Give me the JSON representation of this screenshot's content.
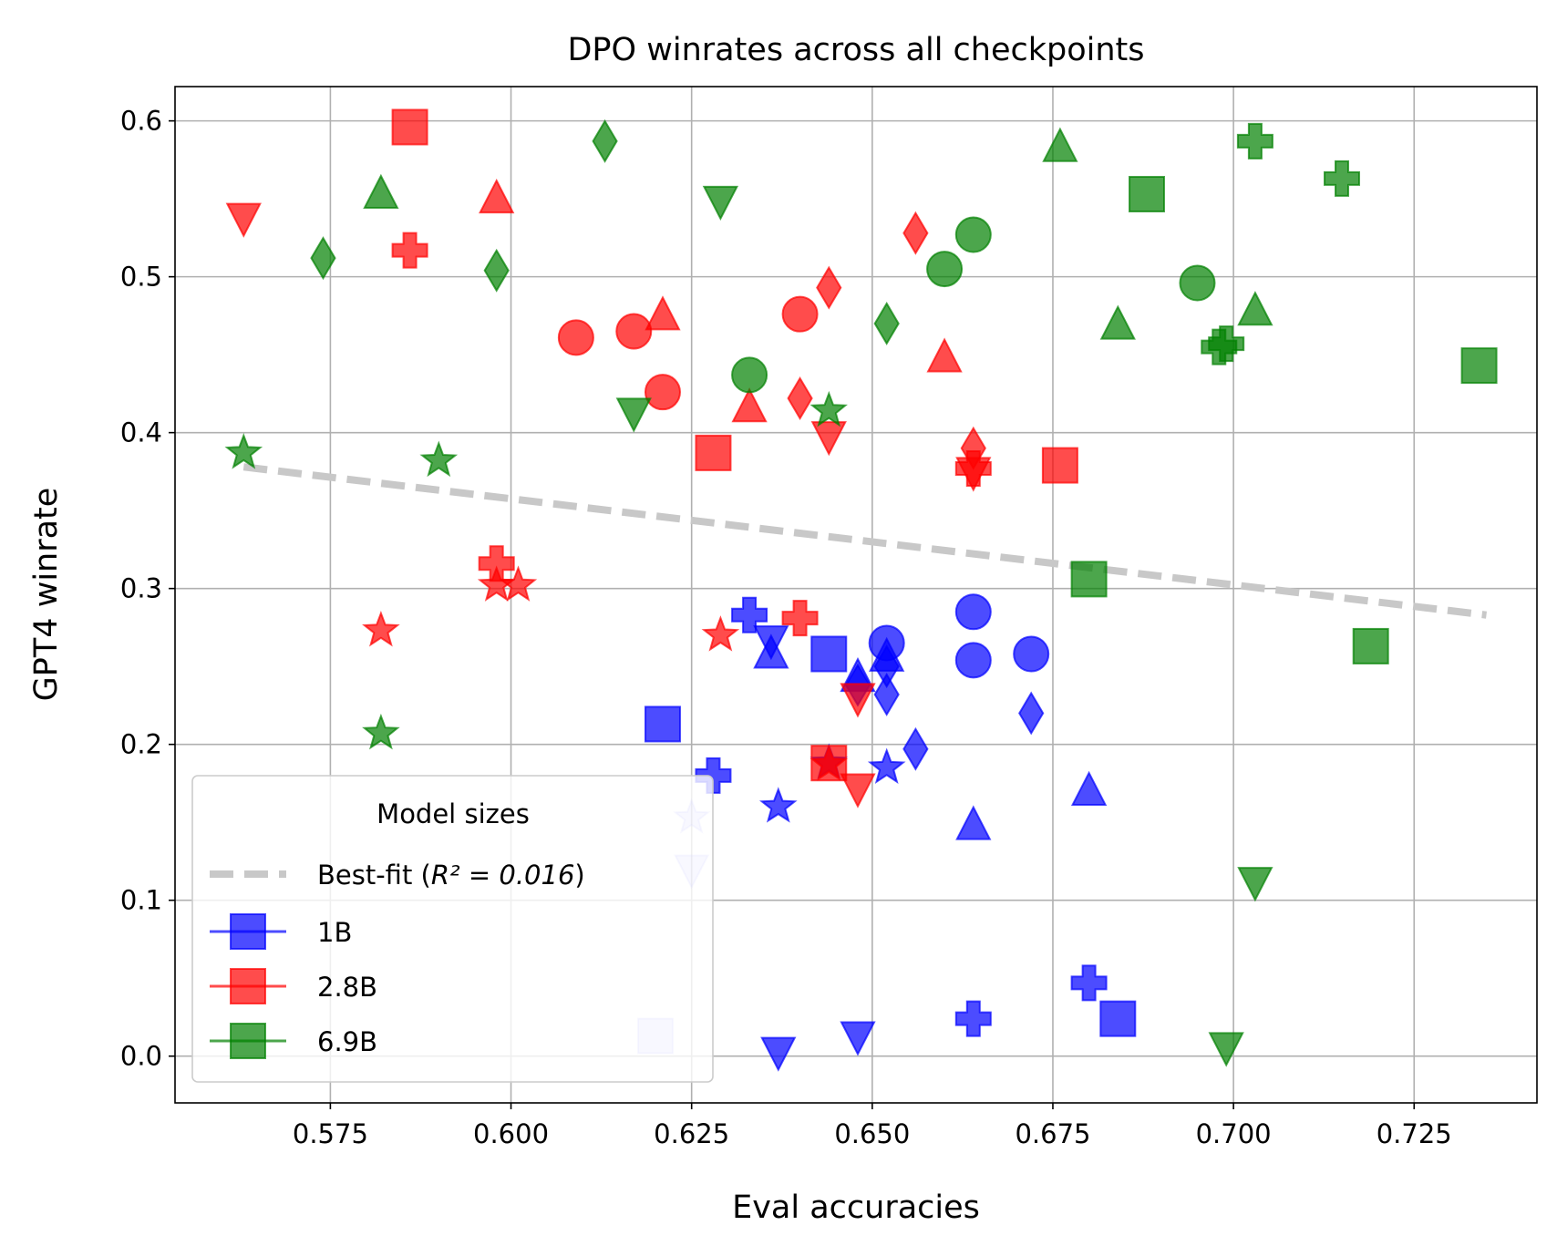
{
  "chart_data": {
    "type": "scatter",
    "title": "DPO winrates across all checkpoints",
    "xlabel": "Eval accuracies",
    "ylabel": "GPT4 winrate",
    "xlim": [
      0.5535,
      0.742
    ],
    "ylim": [
      -0.03,
      0.622
    ],
    "grid": true,
    "xticks": [
      0.575,
      0.6,
      0.625,
      0.65,
      0.675,
      0.7,
      0.725
    ],
    "xtick_labels": [
      "0.575",
      "0.600",
      "0.625",
      "0.650",
      "0.675",
      "0.700",
      "0.725"
    ],
    "yticks": [
      0.0,
      0.1,
      0.2,
      0.3,
      0.4,
      0.5,
      0.6
    ],
    "ytick_labels": [
      "0.0",
      "0.1",
      "0.2",
      "0.3",
      "0.4",
      "0.5",
      "0.6"
    ],
    "best_fit": {
      "x": [
        0.563,
        0.735
      ],
      "y": [
        0.378,
        0.283
      ],
      "label": "Best-fit",
      "r2_label": "R² = 0.016"
    },
    "legend": {
      "title": "Model sizes",
      "location": "lower-left"
    },
    "colors": {
      "1B": "#0000ff",
      "2.8B": "#ff0000",
      "6.9B": "#008000",
      "fit": "#c8c8c8"
    },
    "marker_shapes": [
      "square",
      "circle",
      "triangle-up",
      "triangle-down",
      "diamond",
      "plus",
      "star"
    ],
    "series": [
      {
        "name": "1B",
        "points": [
          {
            "x": 0.644,
            "y": 0.258,
            "marker": "square"
          },
          {
            "x": 0.621,
            "y": 0.213,
            "marker": "square"
          },
          {
            "x": 0.684,
            "y": 0.024,
            "marker": "square"
          },
          {
            "x": 0.62,
            "y": 0.013,
            "marker": "square",
            "alpha": 0.15
          },
          {
            "x": 0.652,
            "y": 0.265,
            "marker": "circle"
          },
          {
            "x": 0.664,
            "y": 0.285,
            "marker": "circle"
          },
          {
            "x": 0.664,
            "y": 0.254,
            "marker": "circle"
          },
          {
            "x": 0.672,
            "y": 0.258,
            "marker": "circle"
          },
          {
            "x": 0.636,
            "y": 0.258,
            "marker": "triangle-up"
          },
          {
            "x": 0.652,
            "y": 0.256,
            "marker": "triangle-up"
          },
          {
            "x": 0.68,
            "y": 0.17,
            "marker": "triangle-up"
          },
          {
            "x": 0.664,
            "y": 0.148,
            "marker": "triangle-up"
          },
          {
            "x": 0.648,
            "y": 0.243,
            "marker": "triangle-up"
          },
          {
            "x": 0.636,
            "y": 0.267,
            "marker": "triangle-down"
          },
          {
            "x": 0.637,
            "y": 0.003,
            "marker": "triangle-down"
          },
          {
            "x": 0.648,
            "y": 0.013,
            "marker": "triangle-down"
          },
          {
            "x": 0.625,
            "y": 0.12,
            "marker": "triangle-down",
            "alpha": 0.15
          },
          {
            "x": 0.652,
            "y": 0.25,
            "marker": "diamond"
          },
          {
            "x": 0.652,
            "y": 0.232,
            "marker": "diamond"
          },
          {
            "x": 0.648,
            "y": 0.238,
            "marker": "diamond"
          },
          {
            "x": 0.656,
            "y": 0.197,
            "marker": "diamond"
          },
          {
            "x": 0.672,
            "y": 0.22,
            "marker": "diamond"
          },
          {
            "x": 0.633,
            "y": 0.283,
            "marker": "plus"
          },
          {
            "x": 0.628,
            "y": 0.18,
            "marker": "plus"
          },
          {
            "x": 0.664,
            "y": 0.024,
            "marker": "plus"
          },
          {
            "x": 0.68,
            "y": 0.047,
            "marker": "plus"
          },
          {
            "x": 0.637,
            "y": 0.16,
            "marker": "star"
          },
          {
            "x": 0.652,
            "y": 0.185,
            "marker": "star"
          },
          {
            "x": 0.644,
            "y": 0.188,
            "marker": "star"
          },
          {
            "x": 0.625,
            "y": 0.153,
            "marker": "star",
            "alpha": 0.15
          }
        ]
      },
      {
        "name": "2.8B",
        "points": [
          {
            "x": 0.586,
            "y": 0.596,
            "marker": "square"
          },
          {
            "x": 0.628,
            "y": 0.387,
            "marker": "square"
          },
          {
            "x": 0.676,
            "y": 0.379,
            "marker": "square"
          },
          {
            "x": 0.644,
            "y": 0.188,
            "marker": "square"
          },
          {
            "x": 0.609,
            "y": 0.461,
            "marker": "circle"
          },
          {
            "x": 0.617,
            "y": 0.465,
            "marker": "circle"
          },
          {
            "x": 0.621,
            "y": 0.426,
            "marker": "circle"
          },
          {
            "x": 0.64,
            "y": 0.476,
            "marker": "circle"
          },
          {
            "x": 0.598,
            "y": 0.55,
            "marker": "triangle-up"
          },
          {
            "x": 0.621,
            "y": 0.475,
            "marker": "triangle-up"
          },
          {
            "x": 0.633,
            "y": 0.416,
            "marker": "triangle-up"
          },
          {
            "x": 0.66,
            "y": 0.448,
            "marker": "triangle-up"
          },
          {
            "x": 0.563,
            "y": 0.538,
            "marker": "triangle-down"
          },
          {
            "x": 0.644,
            "y": 0.398,
            "marker": "triangle-down"
          },
          {
            "x": 0.664,
            "y": 0.375,
            "marker": "triangle-down"
          },
          {
            "x": 0.648,
            "y": 0.23,
            "marker": "triangle-down"
          },
          {
            "x": 0.648,
            "y": 0.172,
            "marker": "triangle-down"
          },
          {
            "x": 0.656,
            "y": 0.528,
            "marker": "diamond"
          },
          {
            "x": 0.644,
            "y": 0.493,
            "marker": "diamond"
          },
          {
            "x": 0.64,
            "y": 0.422,
            "marker": "diamond"
          },
          {
            "x": 0.664,
            "y": 0.39,
            "marker": "diamond"
          },
          {
            "x": 0.586,
            "y": 0.517,
            "marker": "plus"
          },
          {
            "x": 0.598,
            "y": 0.316,
            "marker": "plus"
          },
          {
            "x": 0.64,
            "y": 0.281,
            "marker": "plus"
          },
          {
            "x": 0.664,
            "y": 0.377,
            "marker": "plus"
          },
          {
            "x": 0.598,
            "y": 0.302,
            "marker": "star"
          },
          {
            "x": 0.601,
            "y": 0.302,
            "marker": "star"
          },
          {
            "x": 0.582,
            "y": 0.273,
            "marker": "star"
          },
          {
            "x": 0.629,
            "y": 0.27,
            "marker": "star"
          },
          {
            "x": 0.644,
            "y": 0.187,
            "marker": "star"
          }
        ]
      },
      {
        "name": "6.9B",
        "points": [
          {
            "x": 0.688,
            "y": 0.553,
            "marker": "square"
          },
          {
            "x": 0.734,
            "y": 0.443,
            "marker": "square"
          },
          {
            "x": 0.68,
            "y": 0.306,
            "marker": "square"
          },
          {
            "x": 0.719,
            "y": 0.263,
            "marker": "square"
          },
          {
            "x": 0.664,
            "y": 0.527,
            "marker": "circle"
          },
          {
            "x": 0.66,
            "y": 0.505,
            "marker": "circle"
          },
          {
            "x": 0.695,
            "y": 0.496,
            "marker": "circle"
          },
          {
            "x": 0.633,
            "y": 0.437,
            "marker": "circle"
          },
          {
            "x": 0.582,
            "y": 0.553,
            "marker": "triangle-up"
          },
          {
            "x": 0.676,
            "y": 0.583,
            "marker": "triangle-up"
          },
          {
            "x": 0.684,
            "y": 0.469,
            "marker": "triangle-up"
          },
          {
            "x": 0.703,
            "y": 0.478,
            "marker": "triangle-up"
          },
          {
            "x": 0.629,
            "y": 0.549,
            "marker": "triangle-down"
          },
          {
            "x": 0.617,
            "y": 0.413,
            "marker": "triangle-down"
          },
          {
            "x": 0.703,
            "y": 0.112,
            "marker": "triangle-down"
          },
          {
            "x": 0.699,
            "y": 0.006,
            "marker": "triangle-down"
          },
          {
            "x": 0.613,
            "y": 0.587,
            "marker": "diamond"
          },
          {
            "x": 0.574,
            "y": 0.512,
            "marker": "diamond"
          },
          {
            "x": 0.598,
            "y": 0.504,
            "marker": "diamond"
          },
          {
            "x": 0.652,
            "y": 0.47,
            "marker": "diamond"
          },
          {
            "x": 0.703,
            "y": 0.587,
            "marker": "plus"
          },
          {
            "x": 0.715,
            "y": 0.563,
            "marker": "plus"
          },
          {
            "x": 0.699,
            "y": 0.457,
            "marker": "plus"
          },
          {
            "x": 0.698,
            "y": 0.455,
            "marker": "plus"
          },
          {
            "x": 0.563,
            "y": 0.387,
            "marker": "star"
          },
          {
            "x": 0.59,
            "y": 0.382,
            "marker": "star"
          },
          {
            "x": 0.644,
            "y": 0.414,
            "marker": "star"
          },
          {
            "x": 0.582,
            "y": 0.207,
            "marker": "star"
          }
        ]
      }
    ]
  }
}
